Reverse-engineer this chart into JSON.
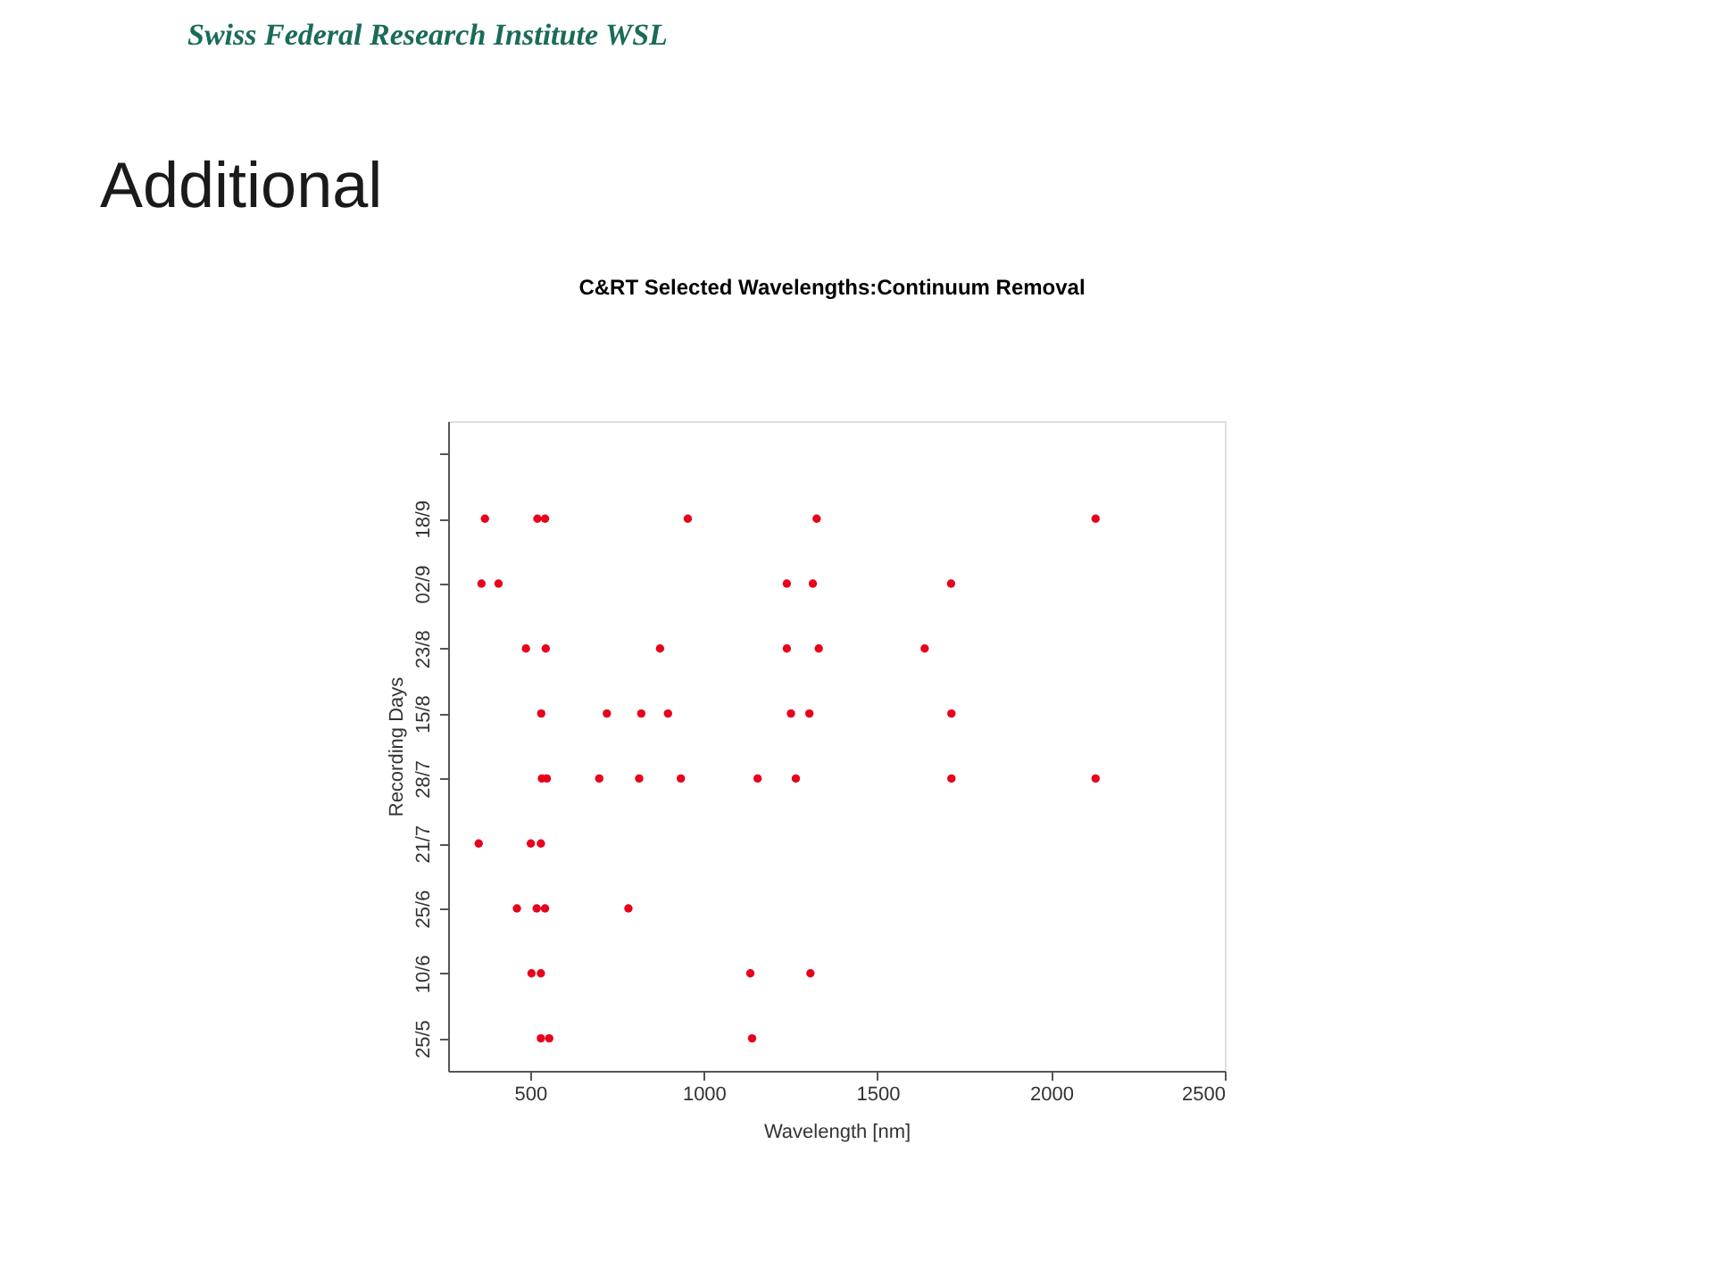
{
  "chart_data": {
    "type": "scatter",
    "orientation": "horizontal",
    "title": "C&RT Selected Wavelengths:Continuum Removal",
    "xlabel": "Wavelength [nm]",
    "ylabel": "Recording Days",
    "annotations": [
      "Swiss Federal Research Institute WSL",
      "Additional"
    ],
    "categories": [
      null,
      "18/9",
      "02/9",
      "23/8",
      "15/8",
      "28/7",
      "21/7",
      "25/6",
      "10/6",
      "25/5"
    ],
    "xlim": [
      264,
      2500
    ],
    "xticks": [
      500,
      1000,
      1500,
      2000,
      2500
    ],
    "grid": false,
    "legend": false,
    "marker": "circle",
    "series": [
      {
        "color": "#e8001c",
        "x": [
          "18/9",
          "18/9",
          "18/9",
          "18/9",
          "18/9",
          "18/9",
          "02/9",
          "02/9",
          "02/9",
          "02/9",
          "02/9",
          "23/8",
          "23/8",
          "23/8",
          "23/8",
          "23/8",
          "23/8",
          "15/8",
          "15/8",
          "15/8",
          "15/8",
          "15/8",
          "15/8",
          "15/8",
          "28/7",
          "28/7",
          "28/7",
          "28/7",
          "28/7",
          "28/7",
          "28/7",
          "28/7",
          "28/7",
          "21/7",
          "21/7",
          "21/7",
          "25/6",
          "25/6",
          "25/6",
          "25/6",
          "10/6",
          "10/6",
          "10/6",
          "10/6",
          "25/5",
          "25/5",
          "25/5"
        ],
        "values": [
          370,
          521,
          543,
          954,
          1325,
          2128,
          360,
          409,
          1239,
          1314,
          1712,
          488,
          545,
          874,
          1239,
          1331,
          1636,
          532,
          721,
          820,
          897,
          1251,
          1304,
          1713,
          534,
          548,
          699,
          814,
          934,
          1155,
          1265,
          1713,
          2128,
          352,
          502,
          531,
          462,
          519,
          543,
          783,
          504,
          531,
          1134,
          1307,
          531,
          555,
          1139
        ]
      }
    ]
  }
}
